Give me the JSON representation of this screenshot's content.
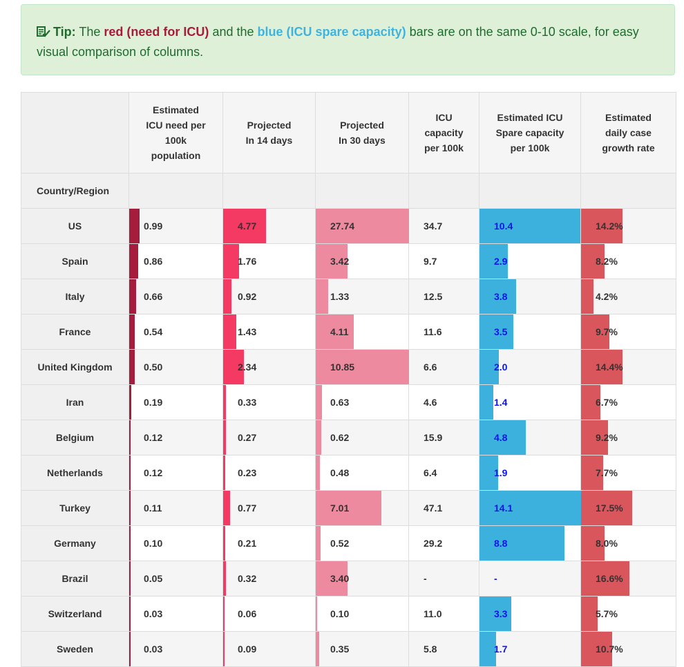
{
  "tip": {
    "label": "Tip:",
    "text_1": "The",
    "red_text": "red (need for ICU)",
    "text_2": "and the",
    "blue_text": "blue (ICU spare capacity)",
    "text_3": "bars are on the same 0-10 scale, for easy visual comparison of columns.",
    "icon": "check-list-icon"
  },
  "table": {
    "headers": {
      "icu_need": "Estimated ICU need per 100k population",
      "proj_14": "Projected In 14 days",
      "proj_30": "Projected In 30 days",
      "icu_capacity": "ICU capacity per 100k",
      "icu_spare": "Estimated ICU Spare capacity per 100k",
      "growth": "Estimated daily case growth rate",
      "country": "Country/Region"
    },
    "rows": [
      {
        "country": "US",
        "need": "0.99",
        "p14": "4.77",
        "p30": "27.74",
        "capacity": "34.7",
        "spare": "10.4",
        "growth": "14.2%"
      },
      {
        "country": "Spain",
        "need": "0.86",
        "p14": "1.76",
        "p30": "3.42",
        "capacity": "9.7",
        "spare": "2.9",
        "growth": "8.2%"
      },
      {
        "country": "Italy",
        "need": "0.66",
        "p14": "0.92",
        "p30": "1.33",
        "capacity": "12.5",
        "spare": "3.8",
        "growth": "4.2%"
      },
      {
        "country": "France",
        "need": "0.54",
        "p14": "1.43",
        "p30": "4.11",
        "capacity": "11.6",
        "spare": "3.5",
        "growth": "9.7%"
      },
      {
        "country": "United Kingdom",
        "need": "0.50",
        "p14": "2.34",
        "p30": "10.85",
        "capacity": "6.6",
        "spare": "2.0",
        "growth": "14.4%"
      },
      {
        "country": "Iran",
        "need": "0.19",
        "p14": "0.33",
        "p30": "0.63",
        "capacity": "4.6",
        "spare": "1.4",
        "growth": "6.7%"
      },
      {
        "country": "Belgium",
        "need": "0.12",
        "p14": "0.27",
        "p30": "0.62",
        "capacity": "15.9",
        "spare": "4.8",
        "growth": "9.2%"
      },
      {
        "country": "Netherlands",
        "need": "0.12",
        "p14": "0.23",
        "p30": "0.48",
        "capacity": "6.4",
        "spare": "1.9",
        "growth": "7.7%"
      },
      {
        "country": "Turkey",
        "need": "0.11",
        "p14": "0.77",
        "p30": "7.01",
        "capacity": "47.1",
        "spare": "14.1",
        "growth": "17.5%"
      },
      {
        "country": "Germany",
        "need": "0.10",
        "p14": "0.21",
        "p30": "0.52",
        "capacity": "29.2",
        "spare": "8.8",
        "growth": "8.0%"
      },
      {
        "country": "Brazil",
        "need": "0.05",
        "p14": "0.32",
        "p30": "3.40",
        "capacity": "-",
        "spare": "-",
        "growth": "16.6%"
      },
      {
        "country": "Switzerland",
        "need": "0.03",
        "p14": "0.06",
        "p30": "0.10",
        "capacity": "11.0",
        "spare": "3.3",
        "growth": "5.7%"
      },
      {
        "country": "Sweden",
        "need": "0.03",
        "p14": "0.09",
        "p30": "0.35",
        "capacity": "5.8",
        "spare": "1.7",
        "growth": "10.7%"
      }
    ]
  },
  "colors": {
    "need_bar": "#a61c3c",
    "proj_14_bar": "#f43a63",
    "proj_30_bar": "#ed8a9f",
    "spare_bar": "#3db1dd",
    "growth_bar": "#d9565d",
    "spare_text": "#0b16e6"
  }
}
